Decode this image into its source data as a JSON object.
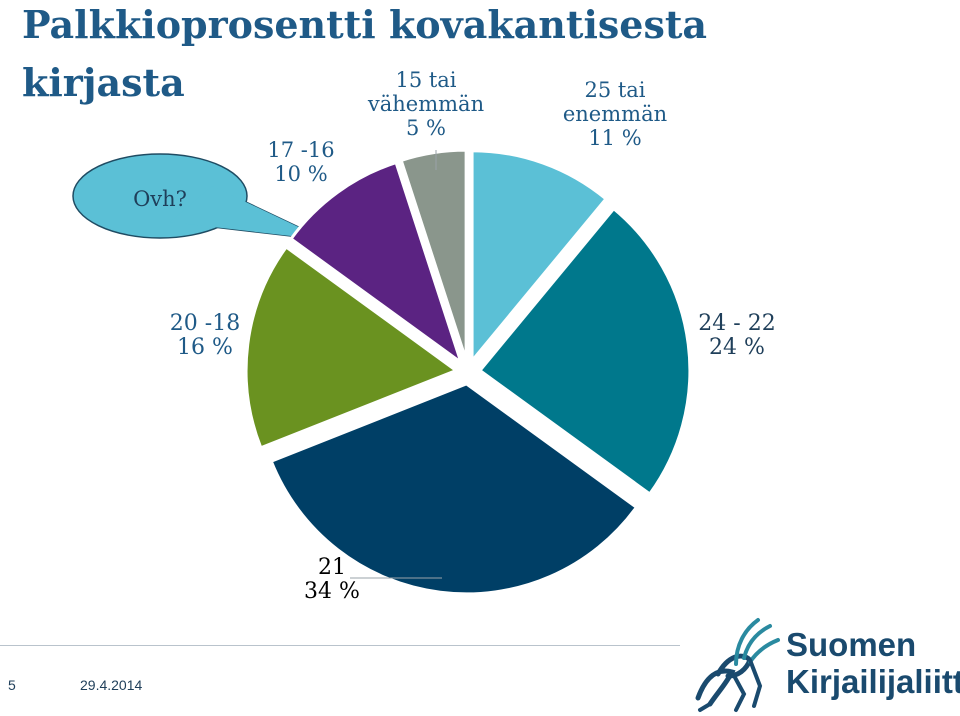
{
  "title": "Palkkioprosentti kovakantisesta kirjasta",
  "callout": {
    "text": "Ovh?"
  },
  "footer": {
    "page": "5",
    "date": "29.4.2014"
  },
  "logo": {
    "line1": "Suomen",
    "line2": "Kirjailijaliitto"
  },
  "colors": {
    "title": "#1f5a87",
    "callout_fill": "#5bc0d6",
    "slices": [
      "#5bc0d6",
      "#00788c",
      "#003f66",
      "#6a9220",
      "#5b2382",
      "#8a968c"
    ]
  },
  "chart_data": {
    "type": "pie",
    "title": "Palkkioprosentti kovakantisesta kirjasta",
    "categories": [
      "25 tai enemmän",
      "24 - 22",
      "21",
      "20 -18",
      "17 -16",
      "15 tai vähemmän"
    ],
    "values": [
      11,
      24,
      34,
      16,
      10,
      5
    ],
    "labels": [
      {
        "category": "25 tai enemmän",
        "line1": "25 tai",
        "line2": "enemmän",
        "percent": "11 %",
        "color": "#1f5a87"
      },
      {
        "category": "24 - 22",
        "line1": "24 - 22",
        "line2": "",
        "percent": "24 %",
        "color": "#1f3f5a"
      },
      {
        "category": "21",
        "line1": "21",
        "line2": "",
        "percent": "34 %",
        "color": "#000000"
      },
      {
        "category": "20 -18",
        "line1": "20 -18",
        "line2": "",
        "percent": "16 %",
        "color": "#1f5a87"
      },
      {
        "category": "17 -16",
        "line1": "17 -16",
        "line2": "",
        "percent": "10 %",
        "color": "#1f5a87"
      },
      {
        "category": "15 tai vähemmän",
        "line1": "15  tai",
        "line2": "vähemmän",
        "percent": "5 %",
        "color": "#1f5a87"
      }
    ],
    "legend": "none",
    "exploded": true
  }
}
